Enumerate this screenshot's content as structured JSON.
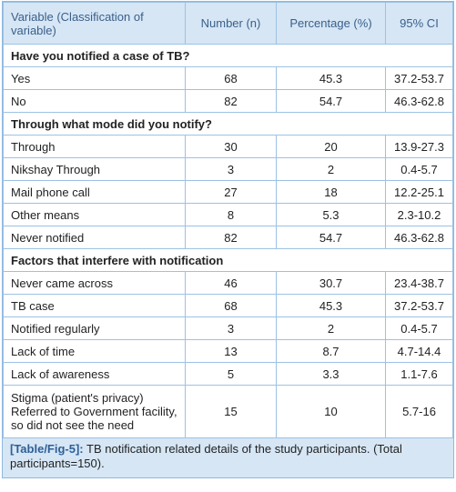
{
  "table": {
    "columns": [
      "Variable (Classification of variable)",
      "Number (n)",
      "Percentage (%)",
      "95% CI"
    ],
    "sections": [
      {
        "title": "Have you notified a case of TB?",
        "rows": [
          [
            "Yes",
            68,
            45.3,
            "37.2-53.7"
          ],
          [
            "No",
            82,
            54.7,
            "46.3-62.8"
          ]
        ]
      },
      {
        "title": "Through what mode did you notify?",
        "rows": [
          [
            "Through",
            30,
            20,
            "13.9-27.3"
          ],
          [
            "Nikshay Through",
            3,
            2,
            "0.4-5.7"
          ],
          [
            "Mail phone call",
            27,
            18,
            "12.2-25.1"
          ],
          [
            "Other means",
            8,
            5.3,
            "2.3-10.2"
          ],
          [
            "Never notified",
            82,
            54.7,
            "46.3-62.8"
          ]
        ]
      },
      {
        "title": "Factors that interfere with notification",
        "rows": [
          [
            "Never came across",
            46,
            30.7,
            "23.4-38.7"
          ],
          [
            "TB case",
            68,
            45.3,
            "37.2-53.7"
          ],
          [
            "Notified regularly",
            3,
            2,
            "0.4-5.7"
          ],
          [
            "Lack of time",
            13,
            8.7,
            "4.7-14.4"
          ],
          [
            "Lack of awareness",
            5,
            3.3,
            "1.1-7.6"
          ],
          [
            "Stigma (patient's privacy) Referred to Government facility, so did not see the need",
            15,
            10,
            "5.7-16"
          ]
        ]
      }
    ],
    "caption": {
      "label": "[Table/Fig-5]:",
      "text": "TB notification related details of the study participants. (Total participants=150)."
    }
  }
}
